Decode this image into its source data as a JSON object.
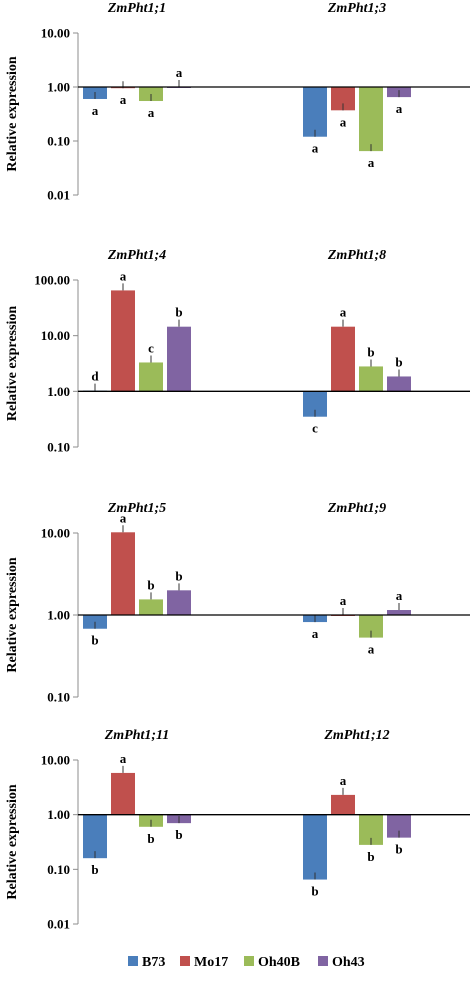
{
  "chart_data": [
    {
      "type": "bar",
      "ylabel": "Relative expression",
      "yscale": "log",
      "baseline": 1,
      "ylim": [
        0.01,
        10
      ],
      "yticks": [
        "0.01",
        "0.10",
        "1.00",
        "10.00"
      ],
      "groups": [
        {
          "title": "ZmPht1;1",
          "series_values": [
            0.6,
            0.95,
            0.55,
            1.0
          ],
          "labels": [
            "a",
            "a",
            "a",
            "a"
          ]
        },
        {
          "title": "ZmPht1;3",
          "series_values": [
            0.12,
            0.37,
            0.065,
            0.65
          ],
          "labels": [
            "a",
            "a",
            "a",
            "a"
          ]
        }
      ]
    },
    {
      "type": "bar",
      "ylabel": "Relative expression",
      "yscale": "log",
      "baseline": 1,
      "ylim": [
        0.1,
        100
      ],
      "yticks": [
        "0.10",
        "1.00",
        "10.00",
        "100.00"
      ],
      "groups": [
        {
          "title": "ZmPht1;4",
          "series_values": [
            1.03,
            65,
            3.3,
            14.5
          ],
          "labels": [
            "d",
            "a",
            "c",
            "b"
          ]
        },
        {
          "title": "ZmPht1;8",
          "series_values": [
            0.35,
            14.5,
            2.8,
            1.85
          ],
          "labels": [
            "c",
            "a",
            "b",
            "b"
          ]
        }
      ]
    },
    {
      "type": "bar",
      "ylabel": "Relative expression",
      "yscale": "log",
      "baseline": 1,
      "ylim": [
        0.1,
        10
      ],
      "yticks": [
        "0.10",
        "1.00",
        "10.00"
      ],
      "groups": [
        {
          "title": "ZmPht1;5",
          "series_values": [
            0.68,
            10.2,
            1.55,
            2.0
          ],
          "labels": [
            "b",
            "a",
            "b",
            "b"
          ]
        },
        {
          "title": "ZmPht1;9",
          "series_values": [
            0.82,
            1.0,
            0.53,
            1.15
          ],
          "labels": [
            "a",
            "a",
            "a",
            "a"
          ]
        }
      ]
    },
    {
      "type": "bar",
      "ylabel": "Relative expression",
      "yscale": "log",
      "baseline": 1,
      "ylim": [
        0.01,
        10
      ],
      "yticks": [
        "0.01",
        "0.10",
        "1.00",
        "10.00"
      ],
      "groups": [
        {
          "title": "ZmPht1;11",
          "series_values": [
            0.16,
            5.8,
            0.6,
            0.7
          ],
          "labels": [
            "b",
            "a",
            "b",
            "b"
          ]
        },
        {
          "title": "ZmPht1;12",
          "series_values": [
            0.065,
            2.3,
            0.28,
            0.38
          ],
          "labels": [
            "b",
            "a",
            "b",
            "b"
          ]
        }
      ]
    }
  ],
  "legend": {
    "position": "bottom",
    "items": [
      {
        "label": "B73",
        "color": "#4a7ebb"
      },
      {
        "label": "Mo17",
        "color": "#c0504d"
      },
      {
        "label": "Oh40B",
        "color": "#9bbb59"
      },
      {
        "label": "Oh43",
        "color": "#8064a2"
      }
    ]
  }
}
